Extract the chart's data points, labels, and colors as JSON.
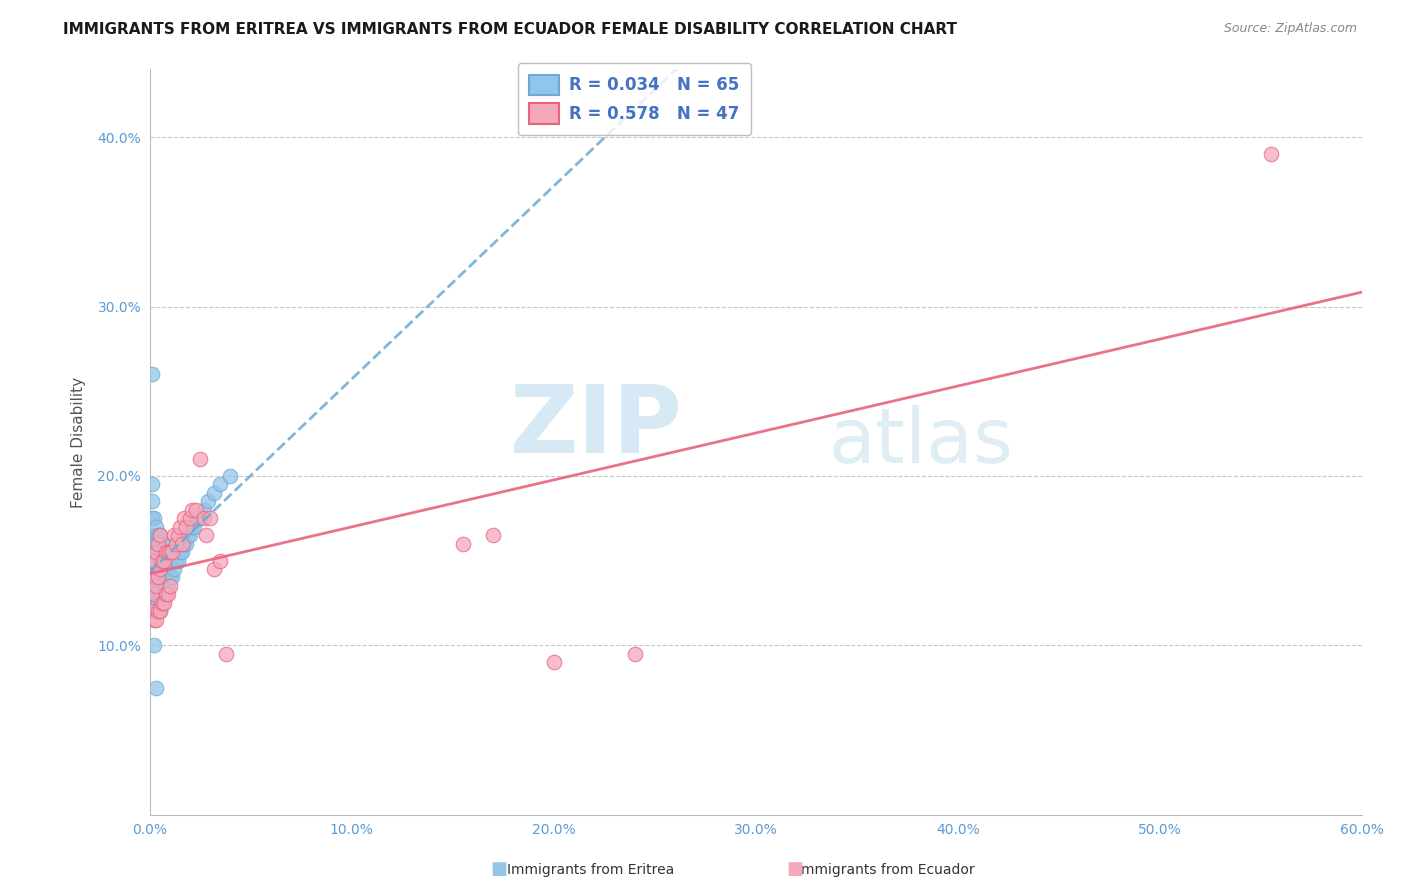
{
  "title": "IMMIGRANTS FROM ERITREA VS IMMIGRANTS FROM ECUADOR FEMALE DISABILITY CORRELATION CHART",
  "source": "Source: ZipAtlas.com",
  "xlabel": "",
  "ylabel": "Female Disability",
  "xlim": [
    0.0,
    0.6
  ],
  "ylim": [
    0.0,
    0.44
  ],
  "xtick_labels": [
    "0.0%",
    "10.0%",
    "20.0%",
    "30.0%",
    "40.0%",
    "50.0%",
    "60.0%"
  ],
  "xtick_values": [
    0.0,
    0.1,
    0.2,
    0.3,
    0.4,
    0.5,
    0.6
  ],
  "ytick_labels": [
    "10.0%",
    "20.0%",
    "30.0%",
    "40.0%"
  ],
  "ytick_values": [
    0.1,
    0.2,
    0.3,
    0.4
  ],
  "legend_eritrea_label": "Immigrants from Eritrea",
  "legend_ecuador_label": "Immigrants from Ecuador",
  "R_eritrea": "0.034",
  "N_eritrea": "65",
  "R_ecuador": "0.578",
  "N_ecuador": "47",
  "color_eritrea": "#92C5E8",
  "color_ecuador": "#F4A8BB",
  "line_color_eritrea": "#6AAAD4",
  "line_color_ecuador": "#E8637E",
  "watermark_zip": "ZIP",
  "watermark_atlas": "atlas",
  "background_color": "#ffffff",
  "title_fontsize": 11,
  "source_fontsize": 9,
  "eritrea_x": [
    0.001,
    0.001,
    0.001,
    0.001,
    0.001,
    0.002,
    0.002,
    0.002,
    0.002,
    0.002,
    0.002,
    0.003,
    0.003,
    0.003,
    0.003,
    0.003,
    0.003,
    0.004,
    0.004,
    0.004,
    0.004,
    0.004,
    0.005,
    0.005,
    0.005,
    0.005,
    0.005,
    0.006,
    0.006,
    0.006,
    0.007,
    0.007,
    0.007,
    0.008,
    0.008,
    0.008,
    0.009,
    0.009,
    0.01,
    0.01,
    0.011,
    0.011,
    0.012,
    0.013,
    0.014,
    0.015,
    0.016,
    0.017,
    0.018,
    0.019,
    0.02,
    0.021,
    0.022,
    0.024,
    0.025,
    0.027,
    0.029,
    0.032,
    0.035,
    0.04,
    0.001,
    0.001,
    0.001,
    0.002,
    0.003
  ],
  "eritrea_y": [
    0.13,
    0.145,
    0.155,
    0.165,
    0.175,
    0.125,
    0.135,
    0.145,
    0.155,
    0.16,
    0.175,
    0.12,
    0.13,
    0.14,
    0.15,
    0.16,
    0.17,
    0.125,
    0.135,
    0.145,
    0.155,
    0.165,
    0.12,
    0.13,
    0.145,
    0.155,
    0.165,
    0.125,
    0.14,
    0.155,
    0.13,
    0.145,
    0.16,
    0.13,
    0.145,
    0.16,
    0.135,
    0.15,
    0.14,
    0.155,
    0.14,
    0.155,
    0.145,
    0.15,
    0.15,
    0.155,
    0.155,
    0.16,
    0.16,
    0.165,
    0.165,
    0.17,
    0.17,
    0.175,
    0.175,
    0.18,
    0.185,
    0.19,
    0.195,
    0.2,
    0.26,
    0.195,
    0.185,
    0.1,
    0.075
  ],
  "ecuador_x": [
    0.001,
    0.001,
    0.002,
    0.002,
    0.002,
    0.003,
    0.003,
    0.003,
    0.004,
    0.004,
    0.004,
    0.005,
    0.005,
    0.005,
    0.006,
    0.006,
    0.007,
    0.007,
    0.008,
    0.008,
    0.009,
    0.009,
    0.01,
    0.01,
    0.011,
    0.012,
    0.013,
    0.014,
    0.015,
    0.016,
    0.017,
    0.018,
    0.02,
    0.021,
    0.023,
    0.025,
    0.027,
    0.028,
    0.03,
    0.032,
    0.035,
    0.038,
    0.155,
    0.17,
    0.2,
    0.24,
    0.555
  ],
  "ecuador_y": [
    0.12,
    0.14,
    0.115,
    0.13,
    0.15,
    0.115,
    0.135,
    0.155,
    0.12,
    0.14,
    0.16,
    0.12,
    0.145,
    0.165,
    0.125,
    0.15,
    0.125,
    0.15,
    0.13,
    0.155,
    0.13,
    0.155,
    0.135,
    0.155,
    0.155,
    0.165,
    0.16,
    0.165,
    0.17,
    0.16,
    0.175,
    0.17,
    0.175,
    0.18,
    0.18,
    0.21,
    0.175,
    0.165,
    0.175,
    0.145,
    0.15,
    0.095,
    0.16,
    0.165,
    0.09,
    0.095,
    0.39
  ]
}
